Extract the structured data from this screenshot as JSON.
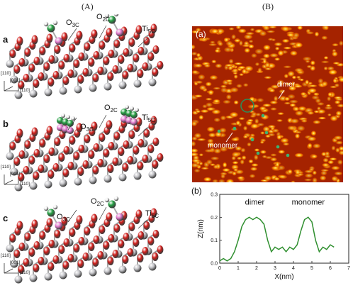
{
  "headers": {
    "left": "(A)",
    "right": "(B)"
  },
  "panels": [
    {
      "letter": "a",
      "labels": [
        "O3C",
        "O2C",
        "Ti5C"
      ]
    },
    {
      "letter": "b",
      "labels": [
        "O3C",
        "O2C",
        "Ti5C"
      ]
    },
    {
      "letter": "c",
      "labels": [
        "O3C",
        "O2C",
        "Ti5C"
      ]
    }
  ],
  "axes_labels": {
    "z": "[110]",
    "y": "[001]",
    "x": "[110]"
  },
  "stm": {
    "panel_label": "(a)",
    "dimer_label": "dimer",
    "monomer_label": "monomer"
  },
  "profile": {
    "panel_label": "(b)",
    "dimer_label": "dimer",
    "monomer_label": "monomer"
  },
  "colors": {
    "oxygen": "#d3201c",
    "titanium": "#c7c7cb",
    "carbon": "#27a245",
    "hydrogen": "#f2f2f2",
    "surface_o": "#e37ed0",
    "curve": "#2f8f2f"
  },
  "chart_data": {
    "type": "line",
    "title": "",
    "xlabel": "X(nm)",
    "ylabel": "Z(nm)",
    "xlim": [
      0,
      7
    ],
    "ylim": [
      0,
      0.3
    ],
    "xticks": [
      0,
      1,
      2,
      3,
      4,
      5,
      6,
      7
    ],
    "yticks": [
      0.0,
      0.1,
      0.2,
      0.3
    ],
    "series": [
      {
        "values": [
          [
            0.0,
            0.01
          ],
          [
            0.2,
            0.02
          ],
          [
            0.4,
            0.01
          ],
          [
            0.6,
            0.02
          ],
          [
            0.8,
            0.05
          ],
          [
            1.0,
            0.1
          ],
          [
            1.2,
            0.16
          ],
          [
            1.4,
            0.19
          ],
          [
            1.6,
            0.2
          ],
          [
            1.8,
            0.19
          ],
          [
            2.0,
            0.2
          ],
          [
            2.2,
            0.19
          ],
          [
            2.4,
            0.17
          ],
          [
            2.6,
            0.1
          ],
          [
            2.8,
            0.05
          ],
          [
            3.0,
            0.07
          ],
          [
            3.2,
            0.06
          ],
          [
            3.4,
            0.07
          ],
          [
            3.6,
            0.05
          ],
          [
            3.8,
            0.07
          ],
          [
            4.0,
            0.06
          ],
          [
            4.2,
            0.08
          ],
          [
            4.4,
            0.14
          ],
          [
            4.6,
            0.19
          ],
          [
            4.8,
            0.2
          ],
          [
            5.0,
            0.18
          ],
          [
            5.2,
            0.1
          ],
          [
            5.4,
            0.05
          ],
          [
            5.6,
            0.07
          ],
          [
            5.8,
            0.06
          ],
          [
            6.0,
            0.08
          ],
          [
            6.2,
            0.07
          ]
        ]
      }
    ]
  }
}
